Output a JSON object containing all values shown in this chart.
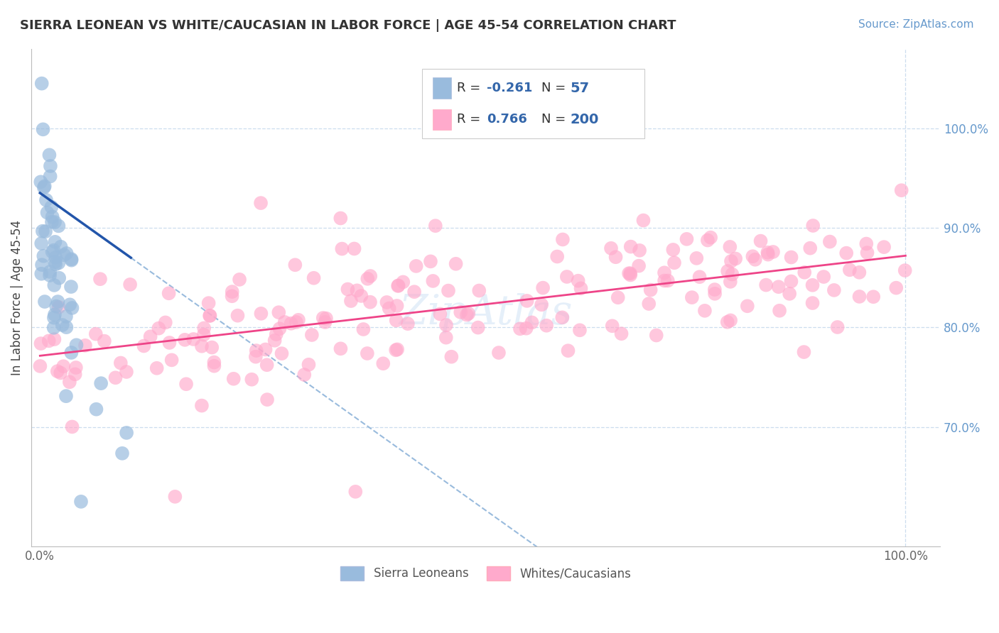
{
  "title": "SIERRA LEONEAN VS WHITE/CAUCASIAN IN LABOR FORCE | AGE 45-54 CORRELATION CHART",
  "source": "Source: ZipAtlas.com",
  "ylabel": "In Labor Force | Age 45-54",
  "blue_R": -0.261,
  "blue_N": 57,
  "pink_R": 0.766,
  "pink_N": 200,
  "blue_color": "#99BBDD",
  "pink_color": "#FFAACC",
  "blue_edge_color": "#88AACC",
  "pink_edge_color": "#FF99BB",
  "blue_line_color": "#2255AA",
  "pink_line_color": "#EE4488",
  "dashed_line_color": "#99BBDD",
  "legend_label_blue": "Sierra Leoneans",
  "legend_label_pink": "Whites/Caucasians",
  "background_color": "#FFFFFF",
  "grid_color": "#CCDDEE",
  "title_color": "#333333",
  "source_color": "#6699CC",
  "legend_text_color": "#3366AA",
  "watermark_color": "#AACCEE",
  "ymin": 0.58,
  "ymax": 1.08,
  "xmin": -0.01,
  "xmax": 1.04,
  "yticks": [
    0.7,
    0.8,
    0.9,
    1.0
  ],
  "ytick_labels": [
    "70.0%",
    "80.0%",
    "90.0%",
    "100.0%"
  ],
  "xticks": [
    0.0,
    1.0
  ],
  "xtick_labels": [
    "0.0%",
    "100.0%"
  ]
}
